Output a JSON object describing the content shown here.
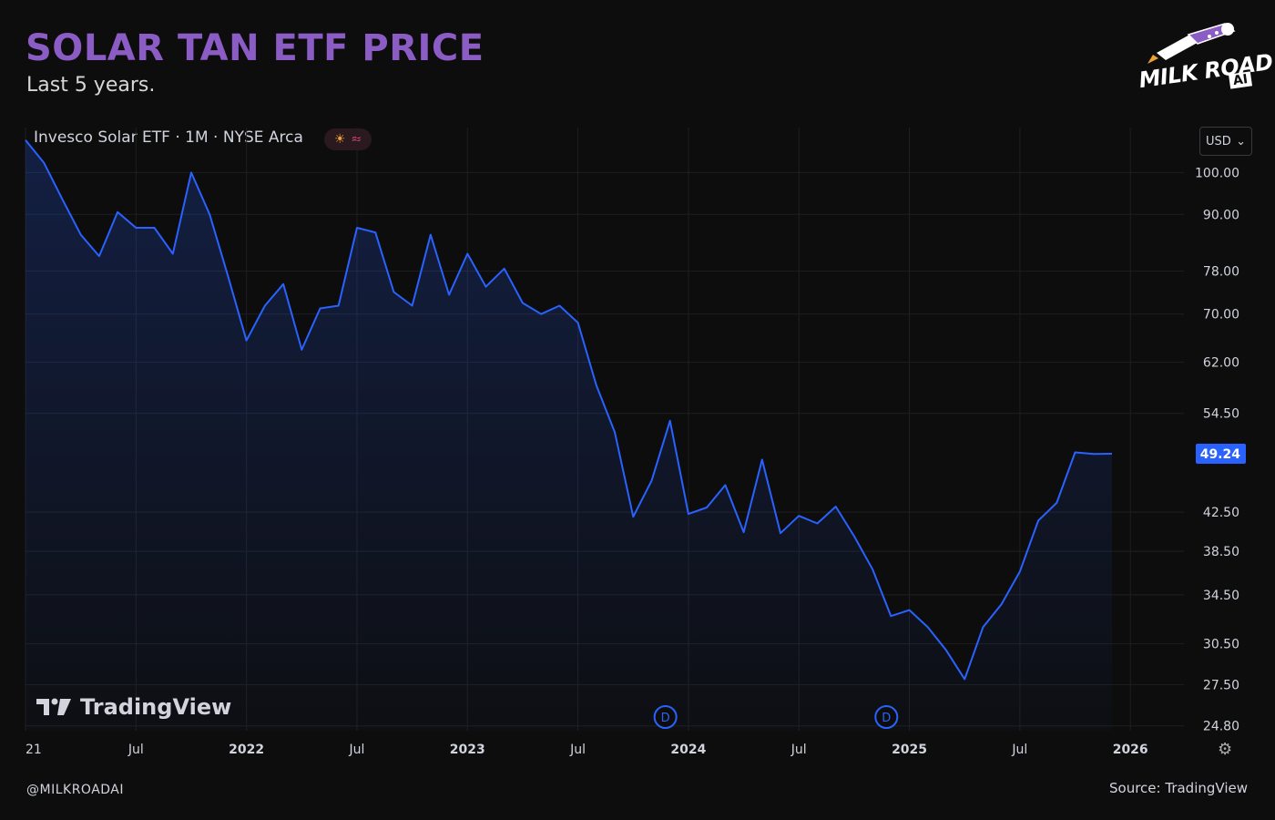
{
  "header": {
    "title": "SOLAR TAN ETF PRICE",
    "subtitle": "Last 5 years."
  },
  "logo": {
    "text": "MILK ROAD",
    "badge": "AI"
  },
  "chart_header": {
    "symbol_label": "Invesco Solar ETF · 1M · NYSE Arca",
    "pill_icons": [
      "sun-icon",
      "wave-icon"
    ],
    "currency": "USD"
  },
  "colors": {
    "line": "#2962ff",
    "price_label_bg": "#2962ff",
    "grid": "#1f1f22",
    "title": "#8a5cc4"
  },
  "chart_data": {
    "type": "line",
    "scale": "log",
    "title": "SOLAR TAN ETF PRICE",
    "series": [
      {
        "name": "Invesco Solar ETF (TAN)",
        "start": "2021-01",
        "interval": "1M",
        "values": [
          108.5,
          102.5,
          93.5,
          85.5,
          81.0,
          90.5,
          87.0,
          87.0,
          81.5,
          100.0,
          90.0,
          77.0,
          65.5,
          71.5,
          75.5,
          64.0,
          71.0,
          71.5,
          87.0,
          86.0,
          74.0,
          71.5,
          85.5,
          73.5,
          81.5,
          75.0,
          78.5,
          72.0,
          70.0,
          71.5,
          68.5,
          58.5,
          52.0,
          42.0,
          46.0,
          53.5,
          42.3,
          43.0,
          45.5,
          40.4,
          48.5,
          40.3,
          42.1,
          41.3,
          43.1,
          40.0,
          36.8,
          32.7,
          33.2,
          31.8,
          30.0,
          27.9,
          31.8,
          33.7,
          36.6,
          41.6,
          43.5,
          49.4,
          49.2,
          49.24
        ]
      }
    ],
    "y_ticks": [
      "24.80",
      "27.50",
      "30.50",
      "34.50",
      "38.50",
      "42.50",
      "49.24",
      "54.50",
      "62.00",
      "70.00",
      "78.00",
      "90.00",
      "100.00"
    ],
    "y_tick_values": [
      24.8,
      27.5,
      30.5,
      34.5,
      38.5,
      42.5,
      54.5,
      62.0,
      70.0,
      78.0,
      90.0,
      100.0
    ],
    "ylim": [
      24.5,
      112
    ],
    "x_ticks": [
      {
        "label": "21",
        "month": 0,
        "bold": false
      },
      {
        "label": "Jul",
        "month": 6,
        "bold": false
      },
      {
        "label": "2022",
        "month": 12,
        "bold": true
      },
      {
        "label": "Jul",
        "month": 18,
        "bold": false
      },
      {
        "label": "2023",
        "month": 24,
        "bold": true
      },
      {
        "label": "Jul",
        "month": 30,
        "bold": false
      },
      {
        "label": "2024",
        "month": 36,
        "bold": true
      },
      {
        "label": "Jul",
        "month": 42,
        "bold": false
      },
      {
        "label": "2025",
        "month": 48,
        "bold": true
      },
      {
        "label": "Jul",
        "month": 54,
        "bold": false
      },
      {
        "label": "2026",
        "month": 60,
        "bold": true
      }
    ],
    "last_price": "49.24",
    "dividend_markers": [
      {
        "label": "D",
        "month": 34.75
      },
      {
        "label": "D",
        "month": 46.75
      }
    ]
  },
  "watermark": "TradingView",
  "footer": {
    "handle": "@MILKROADAI",
    "source": "Source: TradingView"
  }
}
